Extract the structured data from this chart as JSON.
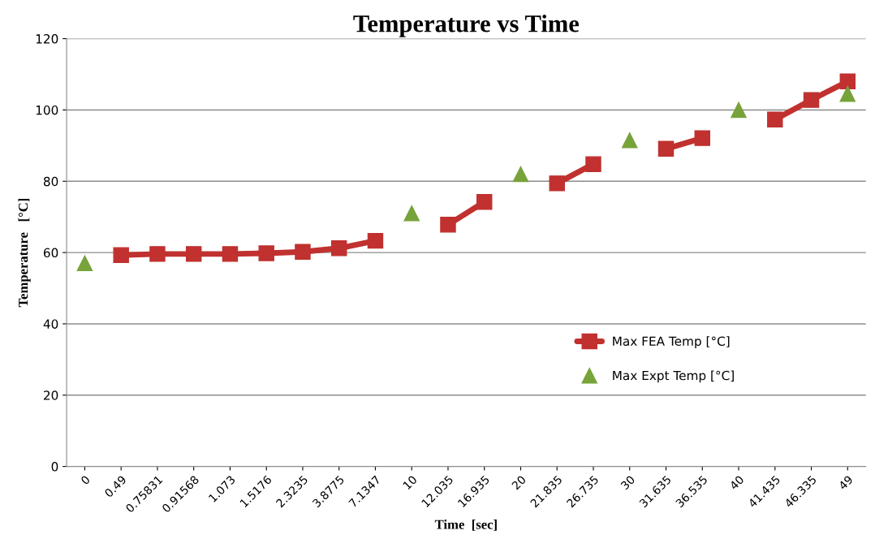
{
  "chart_data": {
    "type": "line",
    "title": "Temperature vs Time",
    "xlabel": "Time  [sec]",
    "ylabel": "Temperature   [°C]",
    "categories": [
      "0",
      "0.49",
      "0.75831",
      "0.91568",
      "1.073",
      "1.5176",
      "2.3235",
      "3.8775",
      "7.1347",
      "10",
      "12.035",
      "16.935",
      "20",
      "21.835",
      "26.735",
      "30",
      "31.635",
      "36.535",
      "40",
      "41.435",
      "46.335",
      "49"
    ],
    "series": [
      {
        "name": "Max FEA Temp [°C]",
        "color": "#c0312f",
        "marker": "square",
        "values": [
          null,
          59.3,
          59.6,
          59.6,
          59.6,
          59.8,
          60.2,
          61.2,
          63.3,
          null,
          67.8,
          74.2,
          null,
          79.4,
          84.8,
          null,
          89.1,
          92.1,
          null,
          97.3,
          102.8,
          108.0
        ]
      },
      {
        "name": "Max Expt Temp [°C]",
        "color": "#77a33a",
        "type": "scatter",
        "marker": "triangle",
        "values": [
          57,
          null,
          null,
          null,
          null,
          null,
          null,
          null,
          null,
          71,
          null,
          null,
          82,
          null,
          null,
          91.5,
          null,
          null,
          100,
          null,
          null,
          104.5
        ]
      }
    ],
    "ylim": [
      0,
      120
    ],
    "yticks": [
      0,
      20,
      40,
      60,
      80,
      100,
      120
    ],
    "grid": "y",
    "legend": "lower right"
  }
}
